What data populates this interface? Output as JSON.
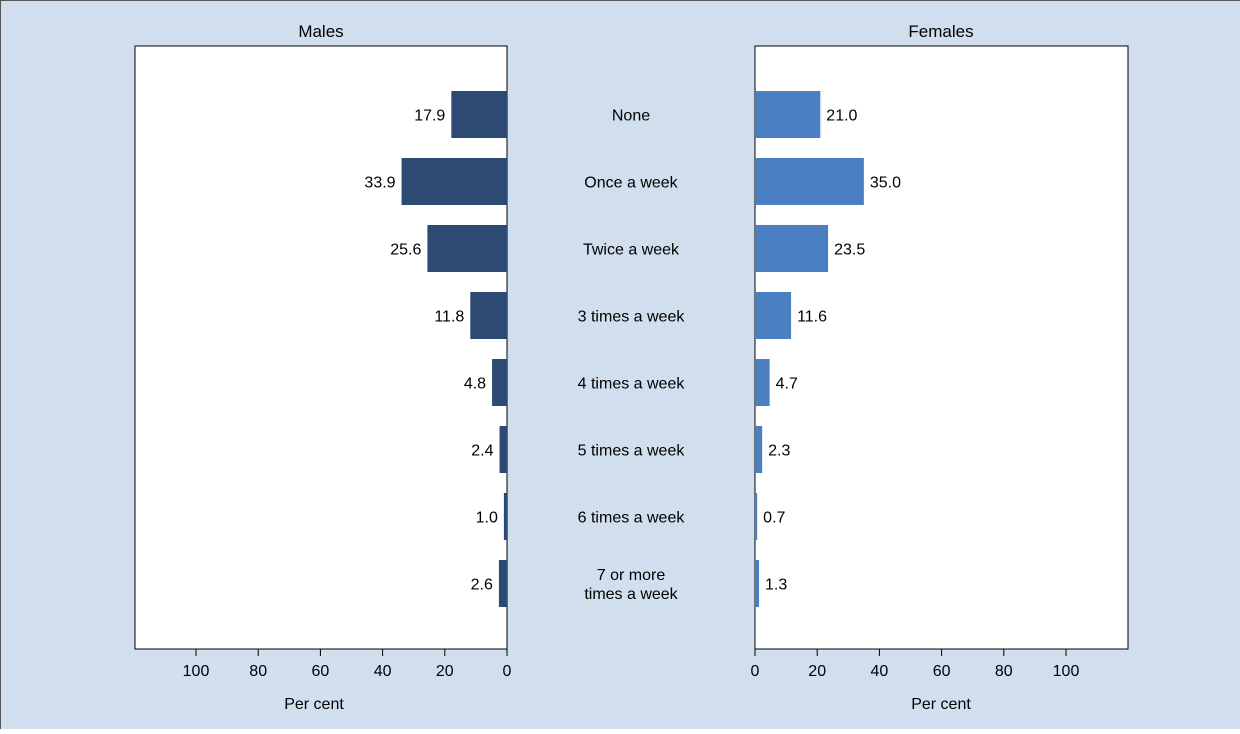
{
  "colors": {
    "background": "#d1deed",
    "panel": "#ffffff",
    "males_bar": "#2d4a73",
    "females_bar": "#4a7fc1",
    "axis": "#000000"
  },
  "chart_data": {
    "type": "bar",
    "orientation": "horizontal-butterfly",
    "categories": [
      [
        "None"
      ],
      [
        "Once a week"
      ],
      [
        "Twice a week"
      ],
      [
        "3 times a week"
      ],
      [
        "4 times a week"
      ],
      [
        "5 times a week"
      ],
      [
        "6 times a week"
      ],
      [
        "7 or more",
        "times a week"
      ]
    ],
    "series": [
      {
        "name": "Males",
        "side": "left",
        "values": [
          17.9,
          33.9,
          25.6,
          11.8,
          4.8,
          2.4,
          1.0,
          2.6
        ],
        "value_labels": [
          "17.9",
          "33.9",
          "25.6",
          "11.8",
          "4.8",
          "2.4",
          "1.0",
          "2.6"
        ]
      },
      {
        "name": "Females",
        "side": "right",
        "values": [
          21.0,
          35.0,
          23.5,
          11.6,
          4.7,
          2.3,
          0.7,
          1.3
        ],
        "value_labels": [
          "21.0",
          "35.0",
          "23.5",
          "11.6",
          "4.7",
          "2.3",
          "0.7",
          "1.3"
        ]
      }
    ],
    "xlim": [
      0,
      120
    ],
    "ticks": [
      "0",
      "20",
      "40",
      "60",
      "80",
      "100"
    ],
    "xlabel": "Per cent",
    "ylabel": "",
    "grid": false,
    "legend": "none"
  }
}
